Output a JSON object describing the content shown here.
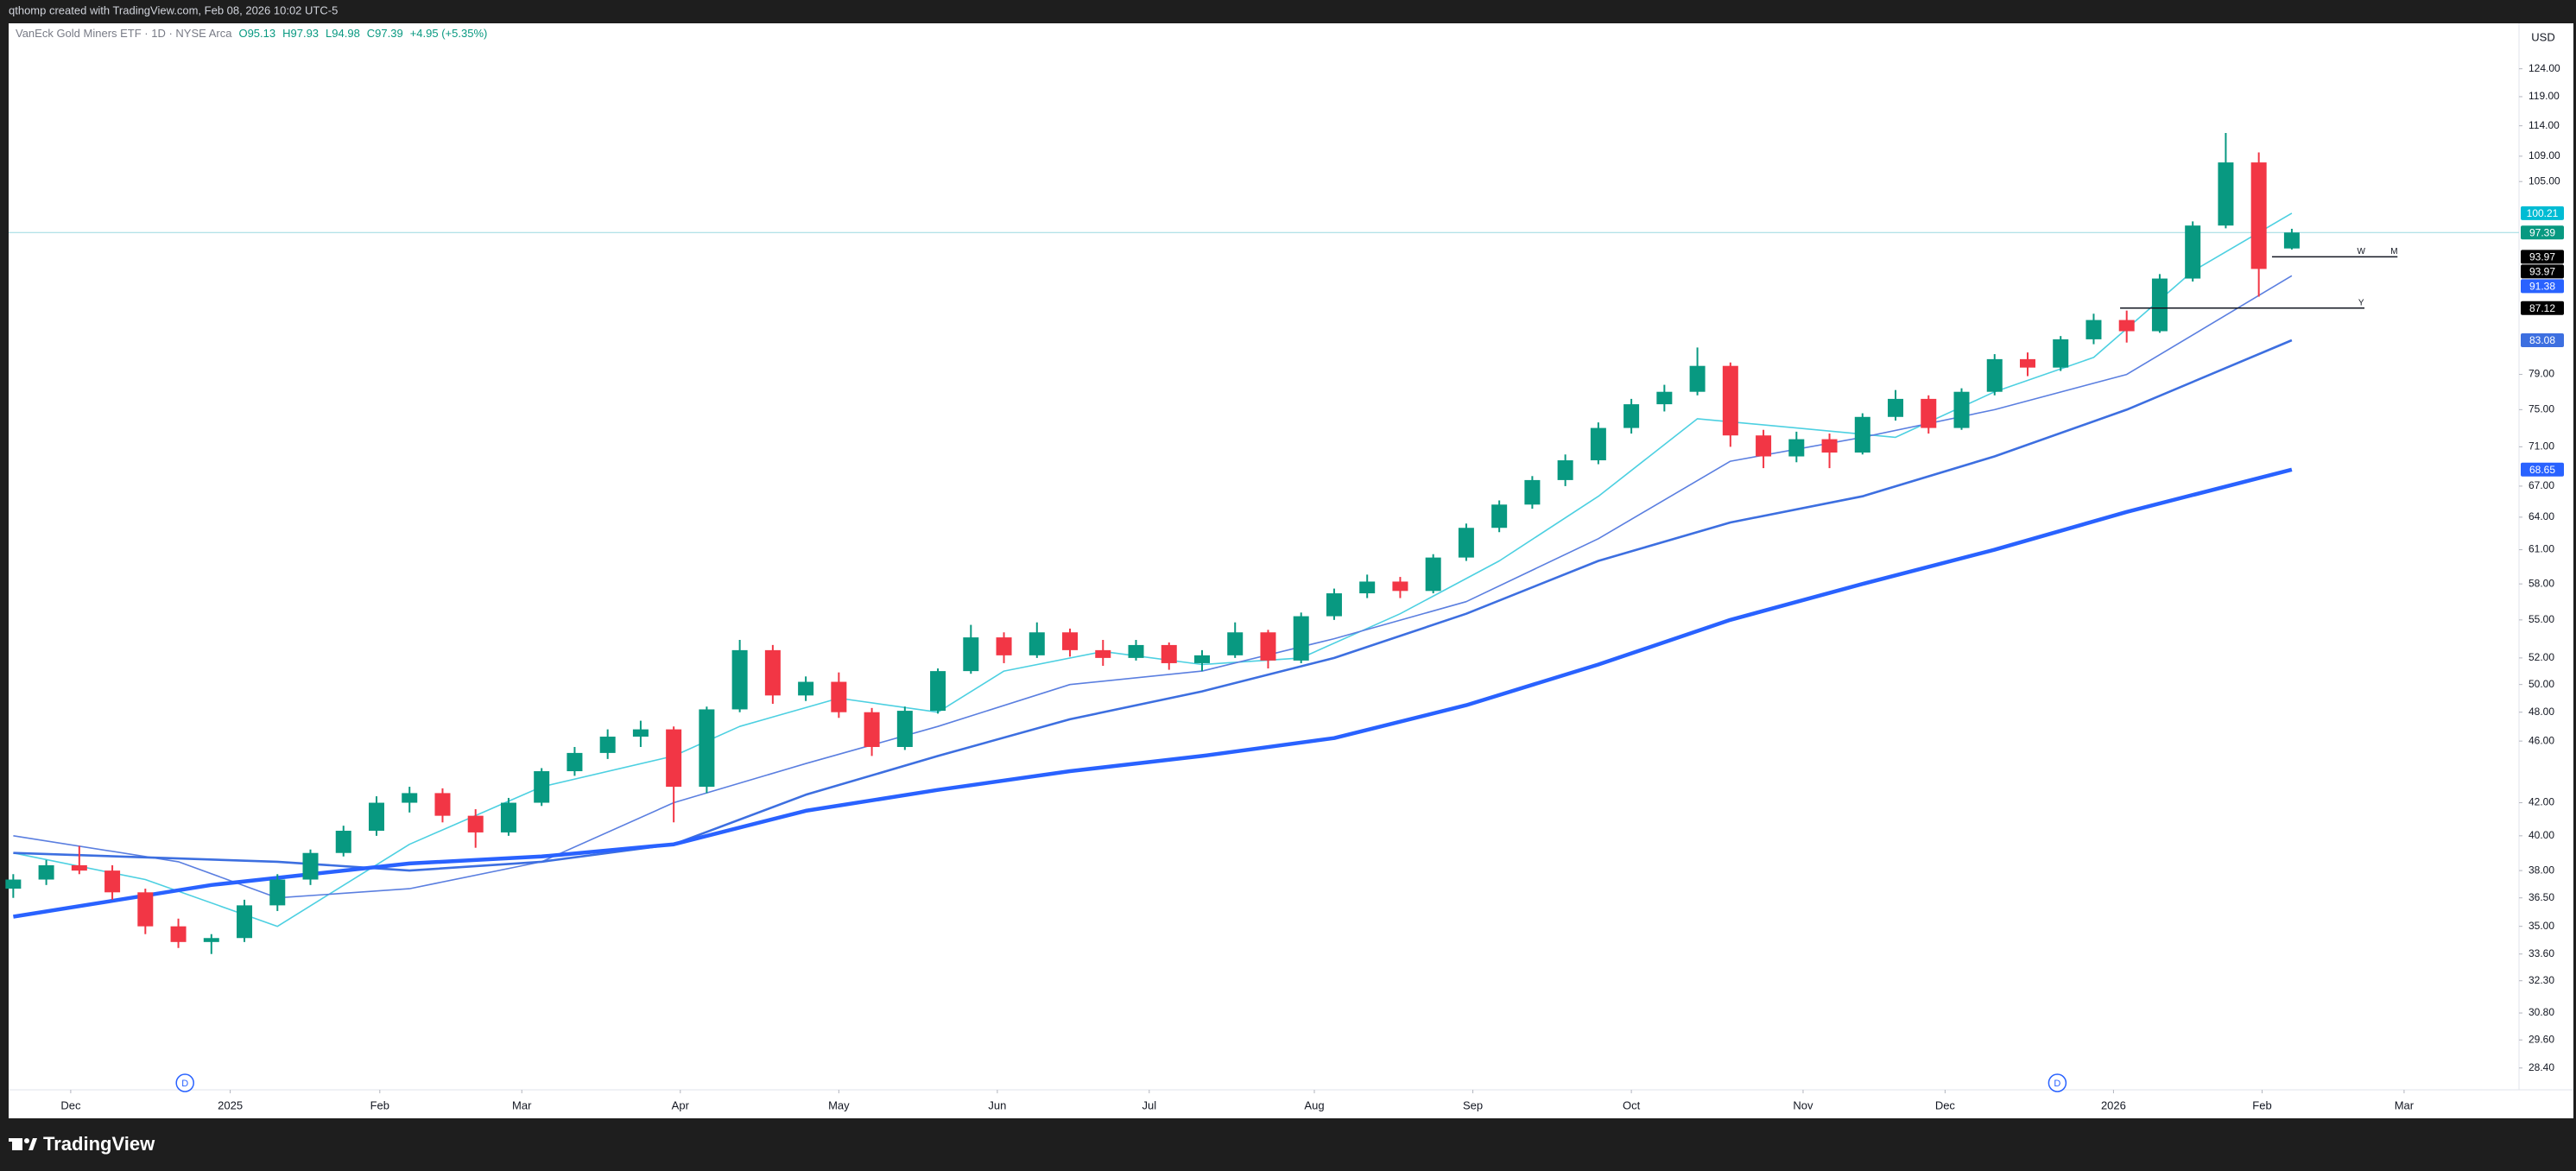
{
  "top_bar": {
    "text": "qthomp created with TradingView.com, Feb 08, 2026 10:02 UTC-5"
  },
  "footer": {
    "brand": "TradingView"
  },
  "chart_data": {
    "type": "candlestick",
    "legend": {
      "symbol": "VanEck Gold Miners ETF · 1D · NYSE Arca",
      "fields": [
        "O95.13",
        "H97.93",
        "L94.98",
        "C97.39",
        "+4.95 (+5.35%)"
      ]
    },
    "currency": "USD",
    "log_scale": true,
    "up_color": "#089981",
    "down_color": "#f23645",
    "ylim": [
      27.5,
      132.6
    ],
    "yticks": [
      {
        "value": 124,
        "label": "124.00"
      },
      {
        "value": 119,
        "label": "119.00"
      },
      {
        "value": 114,
        "label": "114.00"
      },
      {
        "value": 109,
        "label": "109.00"
      },
      {
        "value": 105,
        "label": "105.00"
      },
      {
        "value": 79,
        "label": "79.00"
      },
      {
        "value": 75,
        "label": "75.00"
      },
      {
        "value": 71,
        "label": "71.00"
      },
      {
        "value": 67,
        "label": "67.00"
      },
      {
        "value": 64,
        "label": "64.00"
      },
      {
        "value": 61,
        "label": "61.00"
      },
      {
        "value": 58,
        "label": "58.00"
      },
      {
        "value": 55,
        "label": "55.00"
      },
      {
        "value": 52,
        "label": "52.00"
      },
      {
        "value": 50,
        "label": "50.00"
      },
      {
        "value": 48,
        "label": "48.00"
      },
      {
        "value": 46,
        "label": "46.00"
      },
      {
        "value": 42,
        "label": "42.00"
      },
      {
        "value": 40,
        "label": "40.00"
      },
      {
        "value": 38,
        "label": "38.00"
      },
      {
        "value": 36.5,
        "label": "36.50"
      },
      {
        "value": 35,
        "label": "35.00"
      },
      {
        "value": 33.6,
        "label": "33.60"
      },
      {
        "value": 32.3,
        "label": "32.30"
      },
      {
        "value": 30.8,
        "label": "30.80"
      },
      {
        "value": 29.6,
        "label": "29.60"
      },
      {
        "value": 28.4,
        "label": "28.40"
      }
    ],
    "xlim": [
      -0.14,
      75.88
    ],
    "xticks": [
      {
        "value": 1.74,
        "label": "Dec"
      },
      {
        "value": 6.57,
        "label": "2025"
      },
      {
        "value": 11.1,
        "label": "Feb"
      },
      {
        "value": 15.4,
        "label": "Mar"
      },
      {
        "value": 20.2,
        "label": "Apr"
      },
      {
        "value": 25.0,
        "label": "May"
      },
      {
        "value": 29.8,
        "label": "Jun"
      },
      {
        "value": 34.4,
        "label": "Jul"
      },
      {
        "value": 39.4,
        "label": "Aug"
      },
      {
        "value": 44.2,
        "label": "Sep"
      },
      {
        "value": 49.0,
        "label": "Oct"
      },
      {
        "value": 54.2,
        "label": "Nov"
      },
      {
        "value": 58.5,
        "label": "Dec"
      },
      {
        "value": 63.6,
        "label": "2026"
      },
      {
        "value": 68.1,
        "label": "Feb"
      },
      {
        "value": 72.4,
        "label": "Mar"
      }
    ],
    "candles": [
      [
        37.0,
        37.8,
        36.5,
        37.5
      ],
      [
        37.5,
        38.6,
        37.2,
        38.3
      ],
      [
        38.3,
        39.4,
        37.8,
        38.0
      ],
      [
        38.0,
        38.3,
        36.4,
        36.8
      ],
      [
        36.8,
        37.0,
        34.6,
        35.0
      ],
      [
        35.0,
        35.4,
        33.9,
        34.2
      ],
      [
        34.2,
        34.6,
        33.6,
        34.4
      ],
      [
        34.4,
        36.4,
        34.2,
        36.1
      ],
      [
        36.1,
        37.8,
        35.8,
        37.5
      ],
      [
        37.5,
        39.2,
        37.2,
        39.0
      ],
      [
        39.0,
        40.6,
        38.8,
        40.3
      ],
      [
        40.3,
        42.4,
        40.0,
        42.0
      ],
      [
        42.0,
        43.0,
        41.4,
        42.6
      ],
      [
        42.6,
        42.9,
        40.8,
        41.2
      ],
      [
        41.2,
        41.6,
        39.3,
        40.2
      ],
      [
        40.2,
        42.3,
        40.0,
        42.0
      ],
      [
        42.0,
        44.2,
        41.8,
        44.0
      ],
      [
        44.0,
        45.6,
        43.7,
        45.2
      ],
      [
        45.2,
        46.8,
        44.8,
        46.3
      ],
      [
        46.3,
        47.4,
        45.6,
        46.8
      ],
      [
        46.8,
        47.0,
        40.8,
        43.0
      ],
      [
        43.0,
        48.4,
        42.6,
        48.2
      ],
      [
        48.2,
        53.4,
        48.0,
        52.6
      ],
      [
        52.6,
        53.0,
        48.6,
        49.2
      ],
      [
        49.2,
        50.6,
        48.8,
        50.2
      ],
      [
        50.2,
        50.9,
        47.6,
        48.0
      ],
      [
        48.0,
        48.3,
        45.0,
        45.6
      ],
      [
        45.6,
        48.4,
        45.4,
        48.1
      ],
      [
        48.1,
        51.2,
        47.9,
        51.0
      ],
      [
        51.0,
        54.6,
        50.8,
        53.6
      ],
      [
        53.6,
        54.0,
        51.6,
        52.2
      ],
      [
        52.2,
        54.8,
        52.0,
        54.0
      ],
      [
        54.0,
        54.3,
        52.1,
        52.6
      ],
      [
        52.6,
        53.4,
        51.4,
        52.0
      ],
      [
        52.0,
        53.4,
        51.8,
        53.0
      ],
      [
        53.0,
        53.2,
        51.1,
        51.6
      ],
      [
        51.6,
        52.6,
        51.0,
        52.2
      ],
      [
        52.2,
        54.8,
        52.0,
        54.0
      ],
      [
        54.0,
        54.2,
        51.2,
        51.8
      ],
      [
        51.8,
        55.6,
        51.6,
        55.3
      ],
      [
        55.3,
        57.6,
        55.0,
        57.2
      ],
      [
        57.2,
        58.8,
        56.8,
        58.2
      ],
      [
        58.2,
        58.6,
        56.8,
        57.4
      ],
      [
        57.4,
        60.6,
        57.2,
        60.3
      ],
      [
        60.3,
        63.4,
        60.0,
        63.0
      ],
      [
        63.0,
        65.6,
        62.6,
        65.2
      ],
      [
        65.2,
        68.0,
        64.8,
        67.6
      ],
      [
        67.6,
        70.2,
        67.0,
        69.6
      ],
      [
        69.6,
        73.6,
        69.2,
        73.0
      ],
      [
        73.0,
        76.2,
        72.4,
        75.6
      ],
      [
        75.6,
        77.8,
        74.8,
        77.0
      ],
      [
        77.0,
        82.2,
        76.6,
        80.0
      ],
      [
        80.0,
        80.4,
        71.0,
        72.2
      ],
      [
        72.2,
        72.8,
        68.8,
        70.0
      ],
      [
        70.0,
        72.6,
        69.4,
        71.8
      ],
      [
        71.8,
        72.4,
        68.8,
        70.4
      ],
      [
        70.4,
        74.6,
        70.2,
        74.2
      ],
      [
        74.2,
        77.2,
        73.8,
        76.2
      ],
      [
        76.2,
        76.6,
        72.4,
        73.0
      ],
      [
        73.0,
        77.4,
        72.8,
        77.0
      ],
      [
        77.0,
        81.4,
        76.6,
        80.8
      ],
      [
        80.8,
        81.6,
        78.8,
        79.8
      ],
      [
        79.8,
        83.6,
        79.4,
        83.2
      ],
      [
        83.2,
        86.4,
        82.6,
        85.6
      ],
      [
        85.6,
        86.8,
        82.8,
        84.2
      ],
      [
        84.2,
        91.6,
        84.0,
        91.0
      ],
      [
        91.0,
        99.0,
        90.6,
        98.4
      ],
      [
        98.4,
        112.8,
        98.0,
        108.0
      ],
      [
        108.0,
        109.6,
        88.6,
        92.3
      ],
      [
        95.13,
        97.93,
        94.98,
        97.39
      ]
    ],
    "series": [
      {
        "color": "#4dd0e1",
        "width": 1.6,
        "x": [
          0,
          4,
          8,
          12,
          16,
          20,
          22,
          25,
          28,
          30,
          33,
          36,
          39,
          42,
          45,
          48,
          51,
          54,
          57,
          60,
          63,
          66,
          69
        ],
        "values": [
          39.0,
          37.5,
          35.0,
          39.5,
          43.0,
          45.0,
          47.0,
          49.0,
          48.0,
          51.0,
          52.5,
          51.5,
          52.0,
          55.5,
          60.0,
          66.0,
          74.0,
          73.0,
          72.0,
          77.0,
          81.0,
          92.0,
          100.21
        ]
      },
      {
        "color": "#5b7fe0",
        "width": 1.6,
        "x": [
          0,
          5,
          8,
          12,
          16,
          20,
          24,
          28,
          32,
          36,
          40,
          44,
          48,
          52,
          56,
          60,
          64,
          69
        ],
        "values": [
          40.0,
          38.5,
          36.5,
          37.0,
          38.5,
          42.0,
          44.5,
          47.0,
          50.0,
          51.0,
          53.5,
          56.5,
          62.0,
          69.5,
          72.0,
          75.0,
          79.0,
          91.38
        ]
      },
      {
        "color": "#3d6fe0",
        "width": 2.6,
        "x": [
          0,
          8,
          12,
          16,
          20,
          24,
          28,
          32,
          36,
          40,
          44,
          48,
          52,
          56,
          60,
          64,
          69
        ],
        "values": [
          39.0,
          38.5,
          38.0,
          38.5,
          39.5,
          42.5,
          45.0,
          47.5,
          49.5,
          52.0,
          55.5,
          60.0,
          63.5,
          66.0,
          70.0,
          75.0,
          83.08
        ]
      },
      {
        "color": "#2962ff",
        "width": 4.5,
        "x": [
          0,
          6,
          12,
          16,
          20,
          24,
          28,
          32,
          36,
          40,
          44,
          48,
          52,
          56,
          60,
          64,
          69
        ],
        "values": [
          35.5,
          37.2,
          38.4,
          38.8,
          39.5,
          41.5,
          42.8,
          44.0,
          45.0,
          46.2,
          48.5,
          51.5,
          55.0,
          58.0,
          61.0,
          64.5,
          68.65
        ]
      }
    ],
    "levels": [
      {
        "value": 93.97,
        "xrange": [
          68.4,
          72.2
        ],
        "labels": [
          {
            "x": 71.1,
            "text": "W"
          },
          {
            "x": 72.1,
            "text": "M"
          }
        ]
      },
      {
        "value": 87.12,
        "xrange": [
          63.8,
          71.2
        ],
        "labels": [
          {
            "x": 71.1,
            "text": "Y"
          }
        ]
      }
    ],
    "events": [
      {
        "x": 5.2,
        "label": "D"
      },
      {
        "x": 61.9,
        "label": "D"
      }
    ],
    "price_labels": [
      {
        "value": 100.21,
        "color": "#00bcd4"
      },
      {
        "value": 97.39,
        "color": "#089981"
      },
      {
        "value": 93.97,
        "color": "#000000"
      },
      {
        "value": 93.97,
        "color": "#000000"
      },
      {
        "value": 91.38,
        "color": "#2962ff"
      },
      {
        "value": 87.12,
        "color": "#000000"
      },
      {
        "value": 83.08,
        "color": "#3d6fe0"
      },
      {
        "value": 68.65,
        "color": "#2962ff"
      }
    ]
  }
}
